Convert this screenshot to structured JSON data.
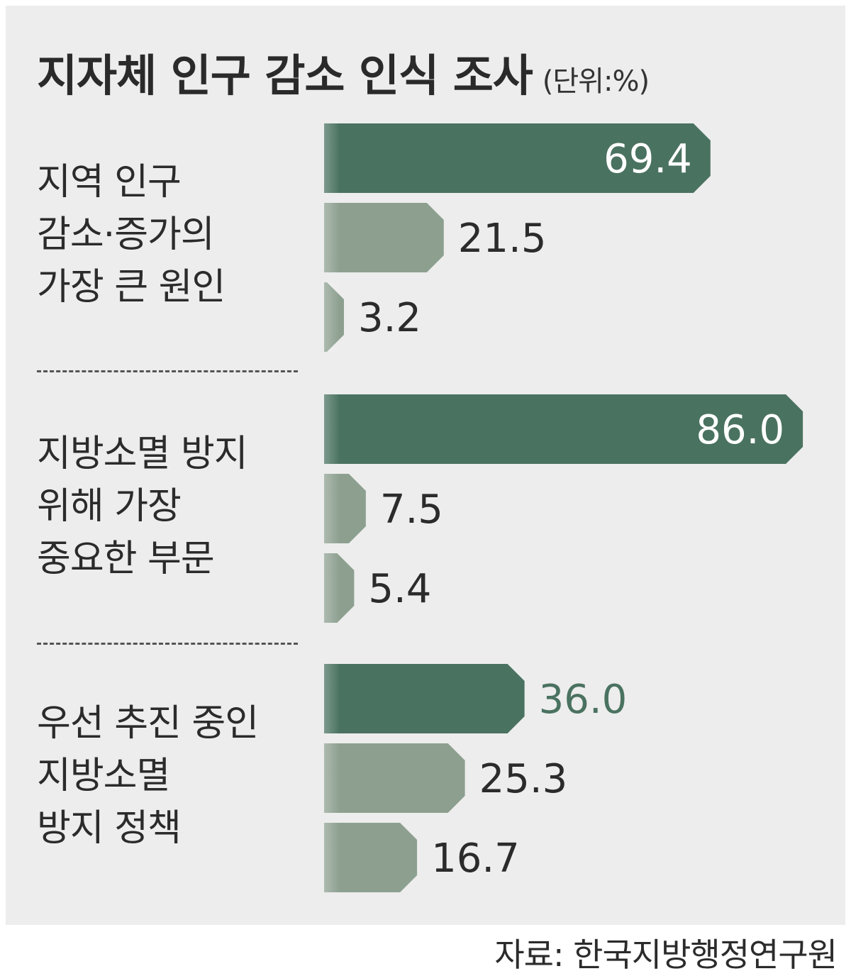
{
  "title": "지자체 인구 감소 인식 조사",
  "unit": "(단위:%)",
  "source": "자료: 한국지방행정연구원",
  "colors": {
    "primary": "#4a7260",
    "secondary": "#8da090",
    "panel": "#ededed",
    "text": "#2b2b2b"
  },
  "chart_data": {
    "type": "bar",
    "orientation": "horizontal",
    "groups": [
      {
        "label_lines": [
          "지역 인구",
          "감소·증가의",
          "가장 큰 원인"
        ],
        "values": [
          69.4,
          21.5,
          3.2
        ],
        "value_labels": [
          "69.4",
          "21.5",
          "3.2"
        ]
      },
      {
        "label_lines": [
          "지방소멸 방지",
          "위해 가장",
          "중요한 부문"
        ],
        "values": [
          86.0,
          7.5,
          5.4
        ],
        "value_labels": [
          "86.0",
          "7.5",
          "5.4"
        ]
      },
      {
        "label_lines": [
          "우선 추진 중인",
          "지방소멸",
          "방지 정책"
        ],
        "values": [
          36.0,
          25.3,
          16.7
        ],
        "value_labels": [
          "36.0",
          "25.3",
          "16.7"
        ]
      }
    ],
    "xlim": [
      0,
      100
    ],
    "grid": false,
    "legend": "none"
  }
}
